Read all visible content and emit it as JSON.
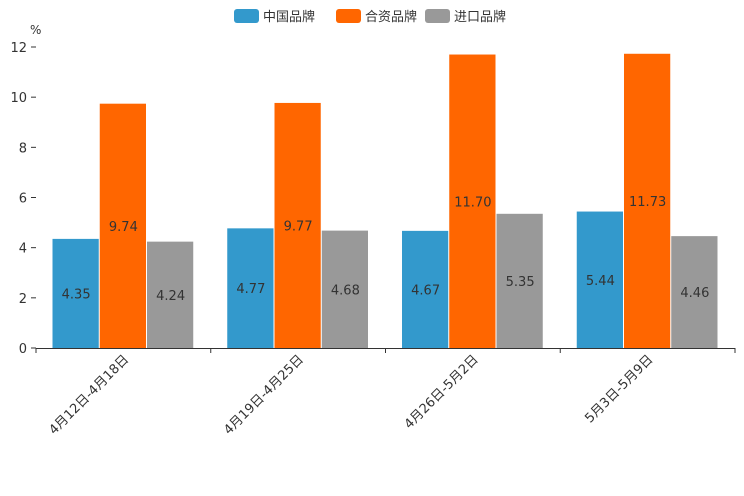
{
  "chart_data": {
    "type": "bar",
    "title": "",
    "ylabel": "%",
    "xlabel": "",
    "ylim": [
      0,
      12
    ],
    "yticks": [
      0,
      2,
      4,
      6,
      8,
      10,
      12
    ],
    "categories": [
      "4月12日-4月18日",
      "4月19日-4月25日",
      "4月26日-5月2日",
      "5月3日-5月9日"
    ],
    "series": [
      {
        "name": "中国品牌",
        "color": "#3399cc",
        "values": [
          4.35,
          4.77,
          4.67,
          5.44
        ],
        "labels": [
          "4.35",
          "4.77",
          "4.67",
          "5.44"
        ]
      },
      {
        "name": "合资品牌",
        "color": "#ff6600",
        "values": [
          9.74,
          9.77,
          11.7,
          11.73
        ],
        "labels": [
          "9.74",
          "9.77",
          "11.70",
          "11.73"
        ]
      },
      {
        "name": "进口品牌",
        "color": "#999999",
        "values": [
          4.24,
          4.68,
          5.35,
          4.46
        ],
        "labels": [
          "4.24",
          "4.68",
          "5.35",
          "4.46"
        ]
      }
    ],
    "legend_position": "top-center",
    "grid": false
  }
}
